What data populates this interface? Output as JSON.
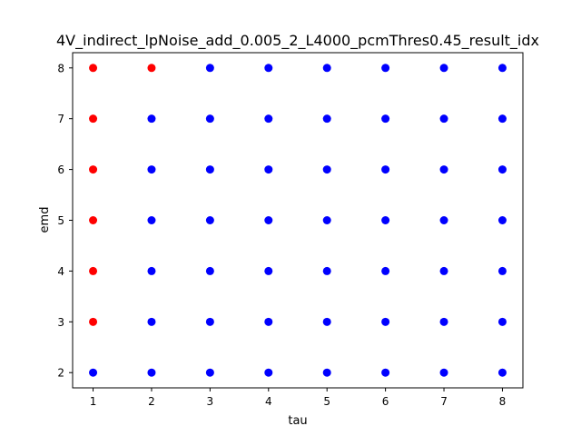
{
  "chart_data": {
    "type": "scatter",
    "title": "4V_indirect_lpNoise_add_0.005_2_L4000_pcmThres0.45_result_idx",
    "xlabel": "tau",
    "ylabel": "emd",
    "xlim": [
      0.65,
      8.35
    ],
    "ylim": [
      1.7,
      8.3
    ],
    "xticks": [
      "1",
      "2",
      "3",
      "4",
      "5",
      "6",
      "7",
      "8"
    ],
    "yticks": [
      "2",
      "3",
      "4",
      "5",
      "6",
      "7",
      "8"
    ],
    "grid": false,
    "legend": "none",
    "colors": {
      "red": "#ff0000",
      "blue": "#0000ff"
    },
    "series": [
      {
        "color": "#ff0000",
        "points": [
          [
            1,
            3
          ],
          [
            1,
            4
          ],
          [
            1,
            5
          ],
          [
            1,
            6
          ],
          [
            1,
            7
          ],
          [
            1,
            8
          ],
          [
            2,
            8
          ]
        ]
      },
      {
        "color": "#0000ff",
        "points": [
          [
            1,
            2
          ],
          [
            2,
            2
          ],
          [
            2,
            3
          ],
          [
            2,
            4
          ],
          [
            2,
            5
          ],
          [
            2,
            6
          ],
          [
            2,
            7
          ],
          [
            3,
            2
          ],
          [
            3,
            3
          ],
          [
            3,
            4
          ],
          [
            3,
            5
          ],
          [
            3,
            6
          ],
          [
            3,
            7
          ],
          [
            3,
            8
          ],
          [
            4,
            2
          ],
          [
            4,
            3
          ],
          [
            4,
            4
          ],
          [
            4,
            5
          ],
          [
            4,
            6
          ],
          [
            4,
            7
          ],
          [
            4,
            8
          ],
          [
            5,
            2
          ],
          [
            5,
            3
          ],
          [
            5,
            4
          ],
          [
            5,
            5
          ],
          [
            5,
            6
          ],
          [
            5,
            7
          ],
          [
            5,
            8
          ],
          [
            6,
            2
          ],
          [
            6,
            3
          ],
          [
            6,
            4
          ],
          [
            6,
            5
          ],
          [
            6,
            6
          ],
          [
            6,
            7
          ],
          [
            6,
            8
          ],
          [
            7,
            2
          ],
          [
            7,
            3
          ],
          [
            7,
            4
          ],
          [
            7,
            5
          ],
          [
            7,
            6
          ],
          [
            7,
            7
          ],
          [
            7,
            8
          ],
          [
            8,
            2
          ],
          [
            8,
            3
          ],
          [
            8,
            4
          ],
          [
            8,
            5
          ],
          [
            8,
            6
          ],
          [
            8,
            7
          ],
          [
            8,
            8
          ]
        ]
      }
    ]
  }
}
